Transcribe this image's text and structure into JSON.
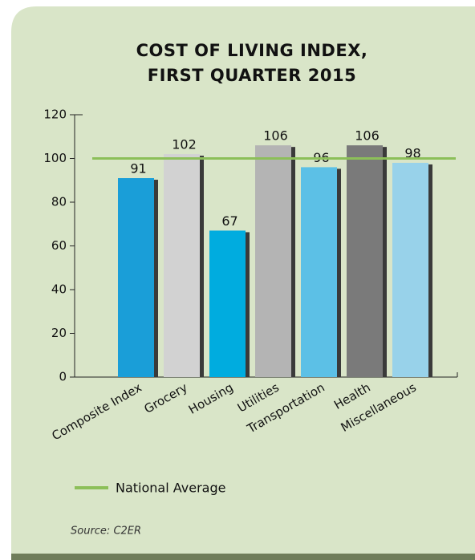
{
  "chart_data": {
    "type": "bar",
    "title_lines": [
      "COST OF LIVING INDEX,",
      "FIRST QUARTER 2015"
    ],
    "categories": [
      "Composite Index",
      "Grocery",
      "Housing",
      "Utilities",
      "Transportation",
      "Health",
      "Miscellaneous"
    ],
    "values": [
      91,
      102,
      67,
      106,
      96,
      106,
      98
    ],
    "colors": [
      "#1a9ed8",
      "#d2d2d2",
      "#00acdf",
      "#b4b4b4",
      "#5cc0e6",
      "#7a7a7a",
      "#98d2ea"
    ],
    "ylim": [
      0,
      120
    ],
    "yticks": [
      0,
      20,
      40,
      60,
      80,
      100,
      120
    ],
    "reference_line": {
      "value": 100,
      "label": "National Average",
      "color": "#8cbf59"
    },
    "source": "Source: C2ER"
  }
}
